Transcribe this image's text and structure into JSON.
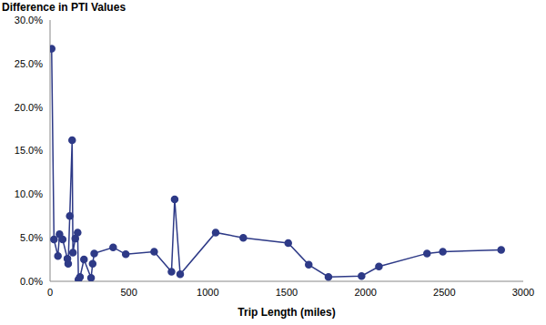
{
  "chart_data": {
    "type": "line",
    "title": "Difference in PTI Values",
    "x_label": "Trip Length (miles)",
    "x": [
      10,
      25,
      50,
      60,
      80,
      110,
      115,
      125,
      140,
      145,
      160,
      175,
      180,
      190,
      215,
      260,
      270,
      280,
      400,
      480,
      660,
      770,
      790,
      825,
      1050,
      1225,
      1510,
      1640,
      1765,
      1975,
      2085,
      2390,
      2490,
      2860
    ],
    "values": [
      26.7,
      4.8,
      2.9,
      5.4,
      4.8,
      2.6,
      2.0,
      7.5,
      16.2,
      3.3,
      4.9,
      5.6,
      0.2,
      0.5,
      2.5,
      0.4,
      2.0,
      3.2,
      3.9,
      3.1,
      3.4,
      1.1,
      9.4,
      0.8,
      5.6,
      5.0,
      4.4,
      1.9,
      0.5,
      0.6,
      1.7,
      3.2,
      3.4,
      3.6
    ],
    "color": "#2e3a87",
    "marker": "circle",
    "line_style": "solid",
    "grid": false,
    "xlim": [
      0,
      3000
    ],
    "xticks": [
      0,
      500,
      1000,
      1500,
      2000,
      2500,
      3000
    ],
    "ylim": [
      0,
      30
    ],
    "yticks": [
      {
        "value": 0,
        "label": "0.0%"
      },
      {
        "value": 5,
        "label": "5.0%"
      },
      {
        "value": 10,
        "label": "10.0%"
      },
      {
        "value": 15,
        "label": "15.0%"
      },
      {
        "value": 20,
        "label": "20.0%"
      },
      {
        "value": 25,
        "label": "25.0%"
      },
      {
        "value": 30,
        "label": "30.0%"
      }
    ]
  }
}
